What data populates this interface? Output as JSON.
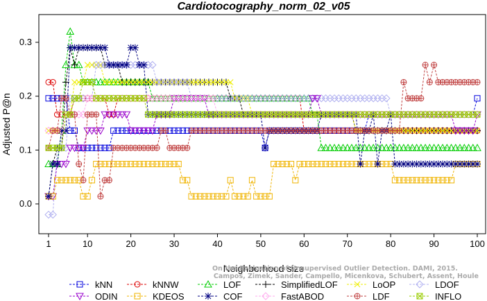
{
  "chart_data": {
    "type": "line",
    "title": "Cardiotocography_norm_02_v05",
    "xlabel": "Neighborhood size",
    "ylabel": "Adjusted P@n",
    "xlim": [
      1,
      100
    ],
    "ylim": [
      -0.05,
      0.33
    ],
    "x_ticks": [
      1,
      10,
      20,
      30,
      40,
      50,
      60,
      70,
      80,
      90,
      100
    ],
    "y_ticks": [
      0.0,
      0.1,
      0.2,
      0.3
    ],
    "y_tick_labels": [
      "0.0",
      "0.1",
      "0.2",
      "0.3"
    ],
    "grid": false,
    "legend_position": "bottom",
    "watermark": [
      "Campos, Zimek, Sander, Campello, Micenkova, Schubert, Assent, Houle",
      "On the Evaluation of Unsupervised Outlier Detection. DAMI, 2015."
    ],
    "series": [
      {
        "name": "kNN",
        "color": "#0000dd",
        "marker": "square",
        "points": [
          [
            1,
            0.196
          ],
          [
            5,
            0.196
          ],
          [
            6,
            0.136
          ],
          [
            8,
            0.104
          ],
          [
            15,
            0.104
          ],
          [
            16,
            0.136
          ],
          [
            50,
            0.136
          ],
          [
            51,
            0.104
          ],
          [
            52,
            0.136
          ],
          [
            75,
            0.166
          ],
          [
            100,
            0.196
          ]
        ]
      },
      {
        "name": "kNNW",
        "color": "#dd0000",
        "marker": "circle",
        "points": [
          [
            1,
            0.226
          ],
          [
            2,
            0.226
          ],
          [
            3,
            0.166
          ],
          [
            6,
            0.166
          ],
          [
            7,
            0.196
          ],
          [
            15,
            0.166
          ],
          [
            17,
            0.196
          ],
          [
            40,
            0.196
          ],
          [
            60,
            0.136
          ],
          [
            100,
            0.136
          ]
        ]
      },
      {
        "name": "LOF",
        "color": "#00cc00",
        "marker": "triangle-up",
        "points": [
          [
            1,
            0.074
          ],
          [
            4,
            0.136
          ],
          [
            5,
            0.258
          ],
          [
            6,
            0.32
          ],
          [
            7,
            0.258
          ],
          [
            9,
            0.226
          ],
          [
            24,
            0.226
          ],
          [
            25,
            0.196
          ],
          [
            44,
            0.196
          ],
          [
            62,
            0.166
          ],
          [
            64,
            0.104
          ],
          [
            100,
            0.104
          ]
        ]
      },
      {
        "name": "SimplifiedLOF",
        "color": "#000000",
        "marker": "plus",
        "points": [
          [
            1,
            0.014
          ],
          [
            2,
            0.074
          ],
          [
            3,
            0.104
          ],
          [
            5,
            0.226
          ],
          [
            6,
            0.29
          ],
          [
            7,
            0.258
          ],
          [
            8,
            0.29
          ],
          [
            13,
            0.29
          ],
          [
            14,
            0.258
          ],
          [
            18,
            0.226
          ],
          [
            42,
            0.226
          ],
          [
            43,
            0.196
          ],
          [
            46,
            0.166
          ],
          [
            70,
            0.166
          ],
          [
            72,
            0.136
          ],
          [
            100,
            0.136
          ]
        ]
      },
      {
        "name": "LoOP",
        "color": "#eeee00",
        "marker": "x",
        "points": [
          [
            1,
            0.136
          ],
          [
            5,
            0.166
          ],
          [
            7,
            0.226
          ],
          [
            10,
            0.258
          ],
          [
            14,
            0.226
          ],
          [
            44,
            0.196
          ],
          [
            48,
            0.166
          ],
          [
            70,
            0.166
          ],
          [
            72,
            0.136
          ],
          [
            100,
            0.136
          ]
        ]
      },
      {
        "name": "LDOF",
        "color": "#b0b0f0",
        "marker": "diamond",
        "points": [
          [
            1,
            -0.02
          ],
          [
            3,
            0.104
          ],
          [
            6,
            0.196
          ],
          [
            12,
            0.258
          ],
          [
            24,
            0.258
          ],
          [
            26,
            0.226
          ],
          [
            34,
            0.196
          ],
          [
            62,
            0.196
          ],
          [
            80,
            0.166
          ],
          [
            100,
            0.166
          ]
        ]
      },
      {
        "name": "ODIN",
        "color": "#9900cc",
        "marker": "triangle-down",
        "points": [
          [
            1,
            0.014
          ],
          [
            3,
            0.074
          ],
          [
            6,
            0.104
          ],
          [
            10,
            0.136
          ],
          [
            14,
            0.166
          ],
          [
            20,
            0.136
          ],
          [
            26,
            0.166
          ],
          [
            30,
            0.196
          ],
          [
            32,
            0.196
          ],
          [
            38,
            0.166
          ],
          [
            42,
            0.166
          ],
          [
            50,
            0.166
          ],
          [
            56,
            0.166
          ],
          [
            62,
            0.196
          ],
          [
            64,
            0.166
          ],
          [
            90,
            0.166
          ],
          [
            95,
            0.136
          ],
          [
            100,
            0.166
          ]
        ]
      },
      {
        "name": "KDEOS",
        "color": "#f0b400",
        "marker": "square",
        "points": [
          [
            1,
            0.014
          ],
          [
            3,
            0.044
          ],
          [
            8,
            0.044
          ],
          [
            9,
            0.014
          ],
          [
            11,
            0.044
          ],
          [
            12,
            0.074
          ],
          [
            14,
            0.074
          ],
          [
            30,
            0.074
          ],
          [
            32,
            0.044
          ],
          [
            34,
            0.014
          ],
          [
            42,
            0.014
          ],
          [
            43,
            0.044
          ],
          [
            44,
            0.014
          ],
          [
            47,
            0.014
          ],
          [
            48,
            0.044
          ],
          [
            49,
            0.014
          ],
          [
            52,
            0.014
          ],
          [
            53,
            0.074
          ],
          [
            57,
            0.074
          ],
          [
            58,
            0.044
          ],
          [
            59,
            0.074
          ],
          [
            70,
            0.074
          ],
          [
            80,
            0.074
          ],
          [
            81,
            0.044
          ],
          [
            94,
            0.044
          ],
          [
            95,
            0.074
          ],
          [
            100,
            0.074
          ]
        ]
      },
      {
        "name": "COF",
        "color": "#000080",
        "marker": "star",
        "points": [
          [
            1,
            0.014
          ],
          [
            2,
            0.074
          ],
          [
            4,
            0.136
          ],
          [
            6,
            0.29
          ],
          [
            14,
            0.29
          ],
          [
            15,
            0.258
          ],
          [
            19,
            0.258
          ],
          [
            20,
            0.29
          ],
          [
            22,
            0.258
          ],
          [
            24,
            0.166
          ],
          [
            50,
            0.166
          ],
          [
            51,
            0.104
          ],
          [
            52,
            0.136
          ],
          [
            62,
            0.136
          ],
          [
            64,
            0.166
          ],
          [
            72,
            0.166
          ],
          [
            73,
            0.074
          ],
          [
            74,
            0.136
          ],
          [
            76,
            0.166
          ],
          [
            77,
            0.074
          ],
          [
            78,
            0.136
          ],
          [
            80,
            0.166
          ],
          [
            81,
            0.074
          ],
          [
            100,
            0.074
          ]
        ]
      },
      {
        "name": "FastABOD",
        "color": "#ffaaee",
        "marker": "diamond",
        "points": [
          [
            1,
            0.136
          ],
          [
            5,
            0.166
          ],
          [
            10,
            0.196
          ],
          [
            20,
            0.196
          ],
          [
            30,
            0.196
          ],
          [
            40,
            0.166
          ],
          [
            60,
            0.166
          ],
          [
            80,
            0.166
          ],
          [
            100,
            0.166
          ]
        ]
      },
      {
        "name": "LDF",
        "color": "#c04040",
        "marker": "circle-plus",
        "points": [
          [
            1,
            0.104
          ],
          [
            2,
            0.136
          ],
          [
            4,
            0.196
          ],
          [
            6,
            0.166
          ],
          [
            8,
            0.074
          ],
          [
            9,
            0.044
          ],
          [
            10,
            0.166
          ],
          [
            13,
            0.014
          ],
          [
            14,
            0.044
          ],
          [
            16,
            0.104
          ],
          [
            26,
            0.104
          ],
          [
            27,
            0.136
          ],
          [
            29,
            0.104
          ],
          [
            32,
            0.104
          ],
          [
            34,
            0.136
          ],
          [
            82,
            0.136
          ],
          [
            83,
            0.226
          ],
          [
            84,
            0.196
          ],
          [
            86,
            0.196
          ],
          [
            88,
            0.258
          ],
          [
            89,
            0.226
          ],
          [
            90,
            0.258
          ],
          [
            91,
            0.226
          ],
          [
            100,
            0.226
          ]
        ]
      },
      {
        "name": "INFLO",
        "color": "#99cc00",
        "marker": "square-x",
        "points": [
          [
            1,
            0.104
          ],
          [
            3,
            0.104
          ],
          [
            5,
            0.166
          ],
          [
            7,
            0.196
          ],
          [
            9,
            0.226
          ],
          [
            12,
            0.196
          ],
          [
            24,
            0.166
          ],
          [
            40,
            0.166
          ],
          [
            60,
            0.166
          ],
          [
            100,
            0.166
          ]
        ]
      }
    ]
  }
}
